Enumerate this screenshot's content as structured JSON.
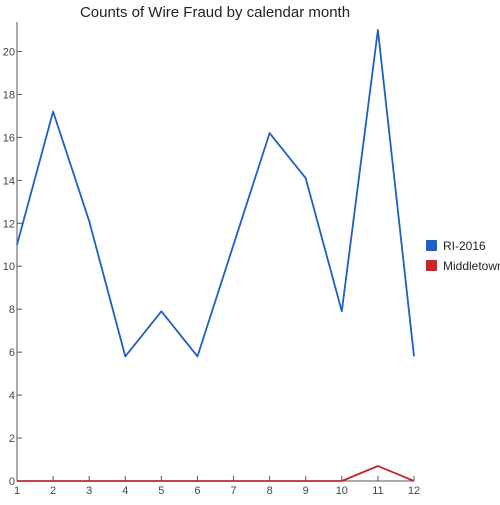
{
  "chart_data": {
    "type": "line",
    "title": "Counts of Wire Fraud by calendar month",
    "xlabel": "",
    "ylabel": "",
    "x": [
      1,
      2,
      3,
      4,
      5,
      6,
      7,
      8,
      9,
      10,
      11,
      12
    ],
    "x_tick_labels": [
      "1",
      "2",
      "3",
      "4",
      "5",
      "6",
      "7",
      "8",
      "9",
      "10",
      "11",
      "12"
    ],
    "y_tick_labels": [
      "0",
      "2",
      "4",
      "6",
      "8",
      "10",
      "12",
      "14",
      "16",
      "18",
      "20"
    ],
    "xlim": [
      1,
      12
    ],
    "ylim": [
      0,
      21
    ],
    "grid": false,
    "legend_position": "right",
    "series": [
      {
        "name": "RI-2016",
        "color": "#1f5fbf",
        "values": [
          11,
          17.2,
          12.1,
          5.8,
          7.9,
          5.8,
          11.0,
          16.2,
          14.1,
          7.9,
          21.0,
          5.8
        ]
      },
      {
        "name": "Middletown",
        "color": "#c0282d",
        "values": [
          0,
          0,
          0,
          0,
          0,
          0,
          0,
          0,
          0,
          0,
          0.7,
          0
        ]
      }
    ]
  }
}
